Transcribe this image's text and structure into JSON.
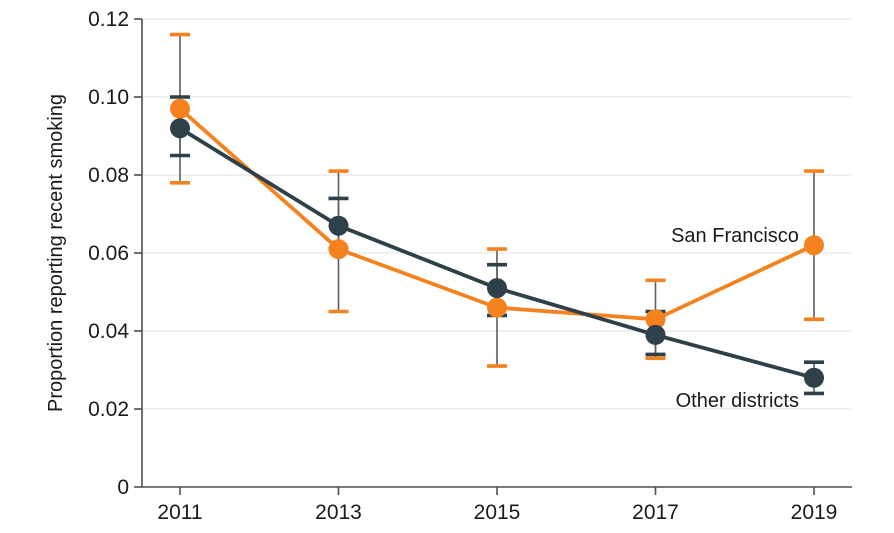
{
  "chart_data": {
    "type": "line",
    "title": "",
    "xlabel": "",
    "ylabel": "Proportion reporting recent smoking",
    "x": [
      2011,
      2013,
      2015,
      2017,
      2019
    ],
    "x_tick_labels": [
      "2011",
      "2013",
      "2015",
      "2017",
      "2019"
    ],
    "ylim": [
      0,
      0.12
    ],
    "y_ticks": [
      0,
      0.02,
      0.04,
      0.06,
      0.08,
      0.1,
      0.12
    ],
    "y_tick_labels": [
      "0",
      "0.02",
      "0.04",
      "0.06",
      "0.08",
      "0.10",
      "0.12"
    ],
    "grid": "horizontal",
    "legend_position": "inline-annotations",
    "series": [
      {
        "name": "San Francisco",
        "color": "#F5821F",
        "values": [
          0.097,
          0.061,
          0.046,
          0.043,
          0.062
        ],
        "ci_low": [
          0.078,
          0.045,
          0.031,
          0.033,
          0.043
        ],
        "ci_high": [
          0.116,
          0.081,
          0.061,
          0.053,
          0.081
        ]
      },
      {
        "name": "Other districts",
        "color": "#2E4049",
        "values": [
          0.092,
          0.067,
          0.051,
          0.039,
          0.028
        ],
        "ci_low": [
          0.085,
          0.061,
          0.044,
          0.034,
          0.024
        ],
        "ci_high": [
          0.1,
          0.074,
          0.057,
          0.045,
          0.032
        ]
      }
    ],
    "annotations": [
      {
        "text": "San Francisco",
        "series": 0,
        "x_year": 2018.81,
        "y_value": 0.0628,
        "anchor": "end"
      },
      {
        "text": "Other districts",
        "series": 1,
        "x_year": 2018.81,
        "y_value": 0.0205,
        "anchor": "end"
      }
    ],
    "colors": {
      "grid": "#E7E7E7",
      "axis": "#4D4E50",
      "error_line": "#5D5E60",
      "text": "#1A1A1A"
    }
  }
}
